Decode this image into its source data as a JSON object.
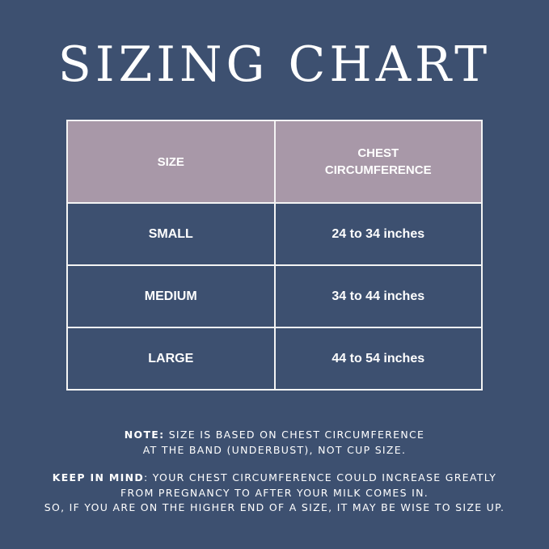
{
  "title": "SIZING CHART",
  "colors": {
    "background": "#3d5070",
    "header": "#a898a8",
    "border": "#f4f4f4",
    "text": "#ffffff"
  },
  "table": {
    "headers": [
      "SIZE",
      "CHEST CIRCUMFERENCE"
    ],
    "rows": [
      {
        "size": "SMALL",
        "range": "24 to 34 inches"
      },
      {
        "size": "MEDIUM",
        "range": "34 to 44 inches"
      },
      {
        "size": "LARGE",
        "range": "44 to 54 inches"
      }
    ]
  },
  "note": {
    "label": "NOTE:",
    "line1": " SIZE IS BASED ON CHEST CIRCUMFERENCE",
    "line2": "AT THE BAND (UNDERBUST), NOT CUP SIZE."
  },
  "keep_in_mind": {
    "label": "KEEP IN MIND",
    "line1": ": YOUR CHEST CIRCUMFERENCE COULD INCREASE GREATLY",
    "line2": "FROM PREGNANCY TO AFTER YOUR MILK COMES IN.",
    "line3": "SO, IF YOU ARE ON THE HIGHER END OF A SIZE, IT MAY BE WISE TO SIZE UP."
  }
}
